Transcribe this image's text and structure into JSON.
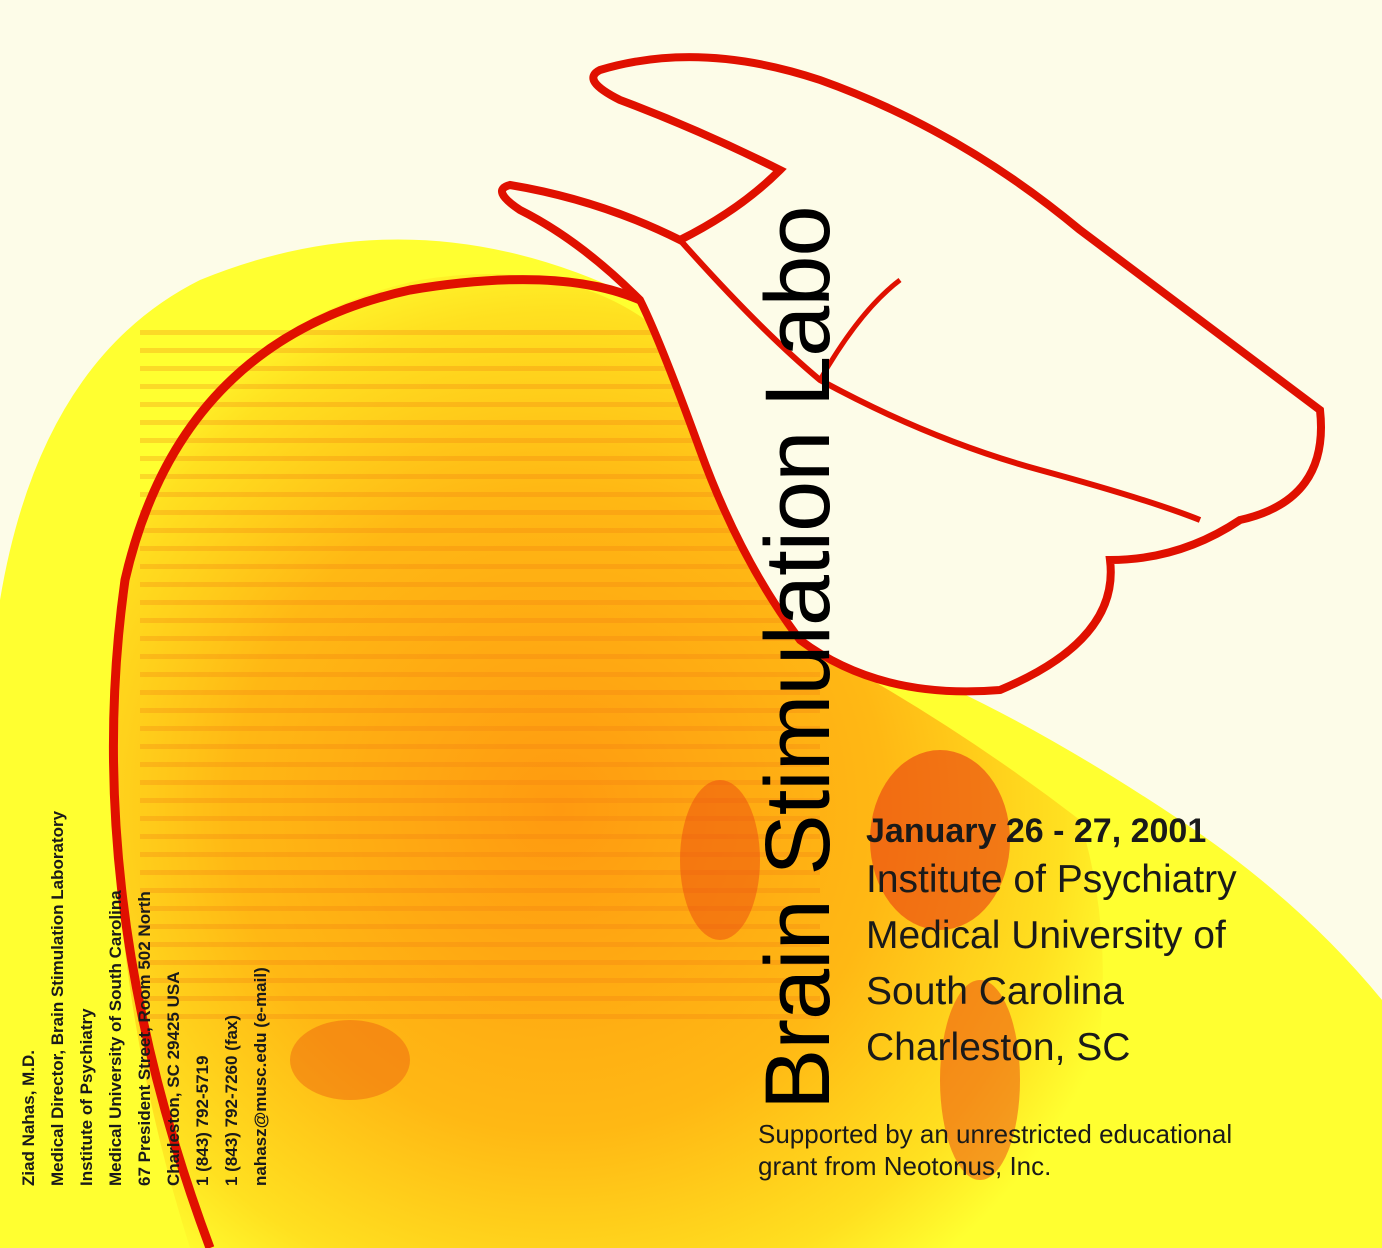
{
  "title": "Brain Stimulation Labo",
  "contact": {
    "lines": [
      "Ziad Nahas, M.D.",
      "Medical Director, Brain Stimulation Laboratory",
      "Institute of Psychiatry",
      "Medical University of South Carolina",
      "67 President Street, Room 502 North",
      "Charleston, SC 29425 USA",
      "1 (843) 792-5719",
      "1 (843) 792-7260 (fax)",
      "nahasz@musc.edu (e-mail)"
    ]
  },
  "event": {
    "date": "January 26 - 27, 2001",
    "lines": [
      "Institute of Psychiatry",
      "Medical University of",
      "South Carolina",
      "Charleston, SC"
    ]
  },
  "support": {
    "lines": [
      "Supported by an unrestricted educational",
      "grant from Neotonus, Inc."
    ]
  },
  "colors": {
    "background": "#fdfce8",
    "yellow": "#ffff30",
    "orange": "#ffb000",
    "red": "#e01000"
  },
  "image": "mri-head-scan-with-stimulation-coil"
}
